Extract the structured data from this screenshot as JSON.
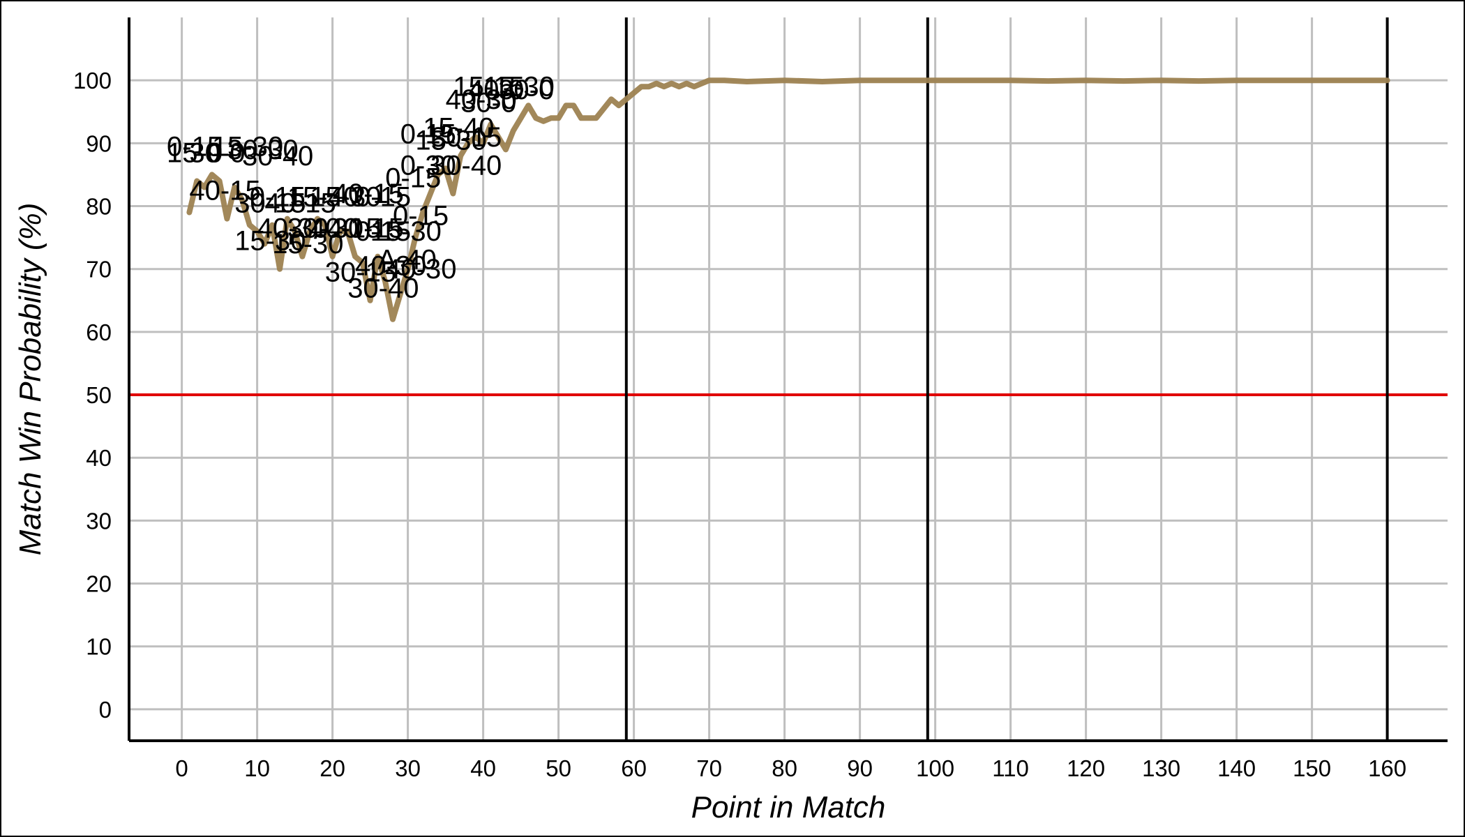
{
  "chart_data": {
    "type": "line",
    "title": "",
    "xlabel": "Point in Match",
    "ylabel": "Match Win Probability (%)",
    "xlim": [
      -7,
      168
    ],
    "ylim": [
      -5,
      110
    ],
    "xticks": [
      0,
      10,
      20,
      30,
      40,
      50,
      60,
      70,
      80,
      90,
      100,
      110,
      120,
      130,
      140,
      150,
      160
    ],
    "yticks": [
      0,
      10,
      20,
      30,
      40,
      50,
      60,
      70,
      80,
      90,
      100
    ],
    "grid": true,
    "threshold": 50,
    "set_boundaries": [
      59,
      99,
      160
    ],
    "colors": {
      "line": "#9d8251",
      "threshold": "#e00000",
      "grid": "#bfbfbf",
      "boundary": "#000000"
    },
    "series": [
      {
        "x": [
          1,
          2,
          3,
          4,
          5,
          6,
          7,
          8,
          9,
          10,
          11,
          12,
          13,
          14,
          15,
          16,
          17,
          18,
          19,
          20,
          21,
          22,
          23,
          24,
          25,
          26,
          27,
          28,
          29,
          30,
          31,
          32,
          33,
          34,
          35,
          36,
          37,
          38,
          39,
          40,
          41,
          42,
          43,
          44,
          45,
          46,
          47,
          48,
          49,
          50,
          51,
          52,
          53,
          54,
          55,
          56,
          57,
          58,
          59,
          60,
          61,
          62,
          63,
          64,
          65,
          66,
          67,
          68,
          69,
          70,
          72,
          75,
          80,
          85,
          90,
          95,
          100,
          105,
          110,
          115,
          120,
          125,
          130,
          135,
          140,
          145,
          150,
          155,
          160
        ],
        "values": [
          79,
          84,
          83,
          85,
          84,
          78,
          83,
          81,
          77,
          76,
          74,
          77,
          70,
          78,
          76,
          72,
          76,
          78,
          77,
          72,
          76,
          76,
          72,
          71,
          65,
          72,
          68,
          62,
          66,
          70,
          75,
          79,
          82,
          85,
          86,
          82,
          88,
          90,
          91,
          90,
          93,
          91,
          89,
          92,
          94,
          96,
          94,
          93.5,
          94,
          94,
          96,
          96,
          94,
          94,
          94,
          95.5,
          97,
          96,
          97,
          98,
          99,
          99,
          99.5,
          99,
          99.5,
          99,
          99.5,
          99,
          99.5,
          100,
          100,
          99.8,
          100,
          99.8,
          100,
          100,
          100,
          100,
          100,
          99.9,
          100,
          99.9,
          100,
          99.9,
          100,
          100,
          100,
          100,
          100
        ]
      }
    ],
    "annotations": [
      {
        "text": "0-15",
        "x": -2,
        "y": 88
      },
      {
        "text": "15-0",
        "x": -2,
        "y": 87
      },
      {
        "text": "30-0",
        "x": 1,
        "y": 87
      },
      {
        "text": "15-30",
        "x": 4,
        "y": 88
      },
      {
        "text": "30-30",
        "x": 6,
        "y": 87.5
      },
      {
        "text": "30-40",
        "x": 8,
        "y": 86.5
      },
      {
        "text": "40-15",
        "x": 1,
        "y": 81
      },
      {
        "text": "30-15",
        "x": 7,
        "y": 79
      },
      {
        "text": "0-15",
        "x": 9,
        "y": 80
      },
      {
        "text": "40-15",
        "x": 11,
        "y": 79
      },
      {
        "text": "15-40",
        "x": 14,
        "y": 80
      },
      {
        "text": "15-30",
        "x": 17,
        "y": 80
      },
      {
        "text": "40-15",
        "x": 20,
        "y": 80.5
      },
      {
        "text": "0-15",
        "x": 23,
        "y": 80
      },
      {
        "text": "15-30",
        "x": 7,
        "y": 73
      },
      {
        "text": "40-30",
        "x": 10,
        "y": 75
      },
      {
        "text": "15-30",
        "x": 12,
        "y": 72.5
      },
      {
        "text": "30-40",
        "x": 14,
        "y": 75
      },
      {
        "text": "40-15",
        "x": 17,
        "y": 75
      },
      {
        "text": "30-15",
        "x": 20,
        "y": 75
      },
      {
        "text": "0-15",
        "x": 23,
        "y": 74.5
      },
      {
        "text": "15-30",
        "x": 25,
        "y": 74.5
      },
      {
        "text": "0-15",
        "x": 28,
        "y": 77
      },
      {
        "text": "A-40",
        "x": 26,
        "y": 70
      },
      {
        "text": "30-15",
        "x": 19,
        "y": 68
      },
      {
        "text": "40-30",
        "x": 23,
        "y": 69
      },
      {
        "text": "40-30",
        "x": 27,
        "y": 68.5
      },
      {
        "text": "30-40",
        "x": 22,
        "y": 65.5
      },
      {
        "text": "0-15",
        "x": 27,
        "y": 83
      },
      {
        "text": "0-30",
        "x": 29,
        "y": 85
      },
      {
        "text": "30-40",
        "x": 33,
        "y": 85
      },
      {
        "text": "0-15",
        "x": 29,
        "y": 90
      },
      {
        "text": "15-30",
        "x": 31,
        "y": 89
      },
      {
        "text": "15-40",
        "x": 32,
        "y": 91
      },
      {
        "text": "30-15",
        "x": 33,
        "y": 89.5
      },
      {
        "text": "40-30",
        "x": 35,
        "y": 95.5
      },
      {
        "text": "30-0",
        "x": 37,
        "y": 95
      },
      {
        "text": "15-15",
        "x": 36,
        "y": 97.5
      },
      {
        "text": "40-0",
        "x": 38,
        "y": 97
      },
      {
        "text": "15-30",
        "x": 40,
        "y": 97.5
      },
      {
        "text": "30-0",
        "x": 42,
        "y": 97
      }
    ]
  }
}
